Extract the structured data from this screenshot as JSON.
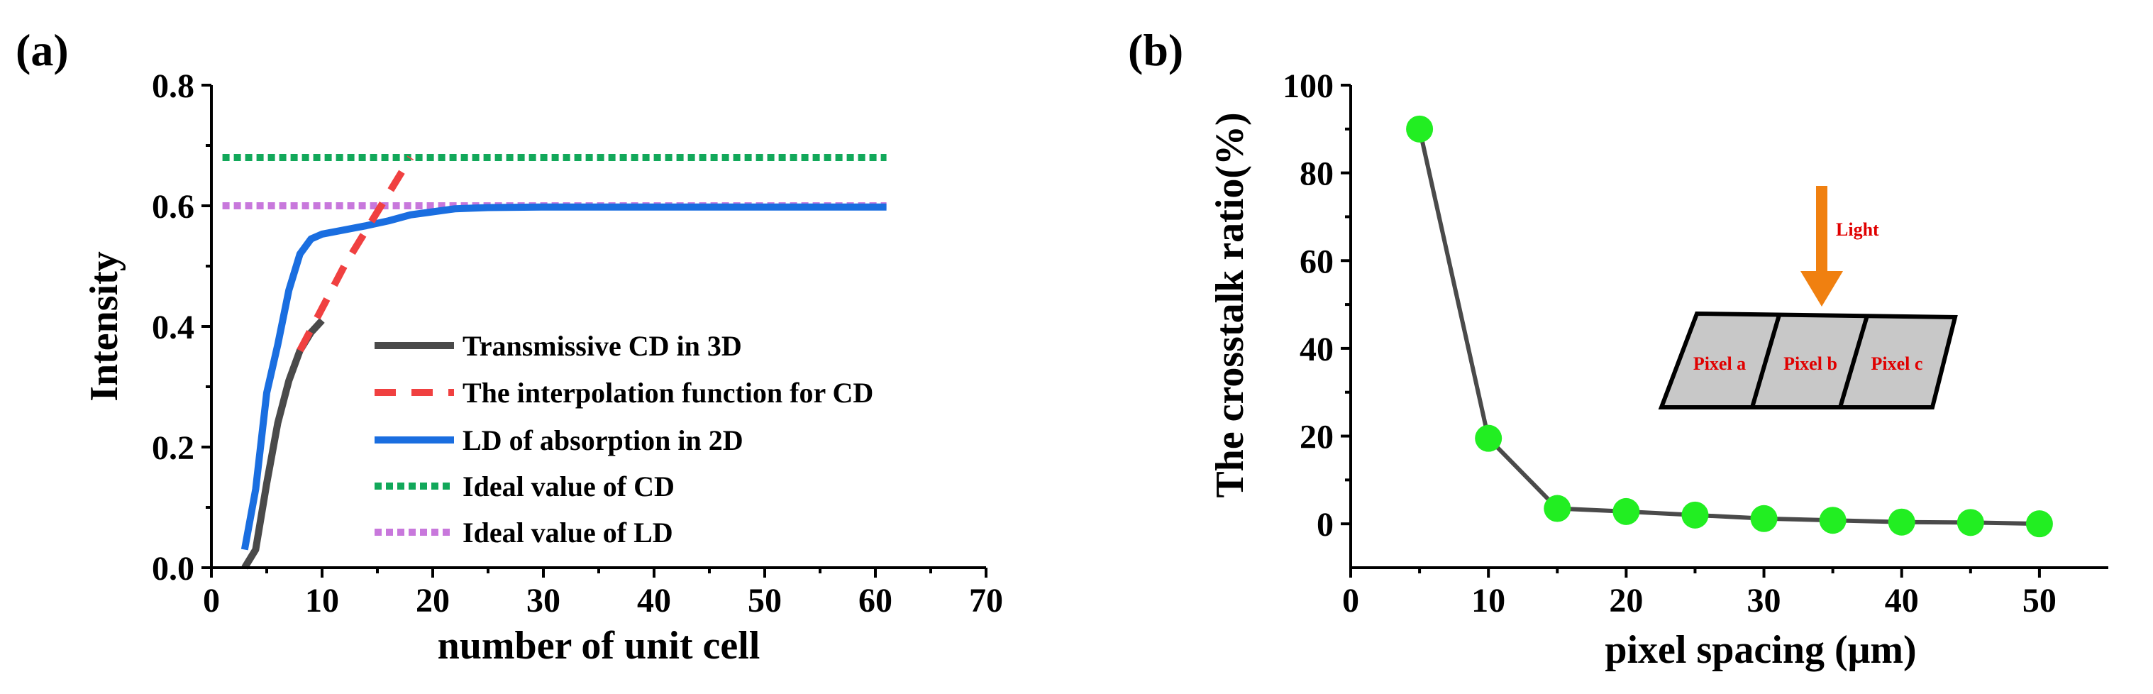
{
  "panels": {
    "a": {
      "label": "(a)"
    },
    "b": {
      "label": "(b)"
    }
  },
  "chart_data": [
    {
      "id": "a",
      "type": "line",
      "title": "",
      "xlabel": "number of unit cell",
      "ylabel": "Intensity",
      "xlim": [
        0,
        70
      ],
      "ylim": [
        0,
        0.8
      ],
      "xticks": [
        0,
        10,
        20,
        30,
        40,
        50,
        60,
        70
      ],
      "yticks": [
        0.0,
        0.2,
        0.4,
        0.6,
        0.8
      ],
      "xtick_labels": [
        "0",
        "10",
        "20",
        "30",
        "40",
        "50",
        "60",
        "70"
      ],
      "ytick_labels": [
        "0.0",
        "0.2",
        "0.4",
        "0.6",
        "0.8"
      ],
      "legend_position": "bottom-right",
      "series": [
        {
          "name": "Transmissive CD in 3D",
          "color": "#4a4a4a",
          "style": "solid",
          "x": [
            3,
            4,
            5,
            6,
            7,
            8,
            9,
            10
          ],
          "y": [
            0.0,
            0.03,
            0.14,
            0.24,
            0.31,
            0.36,
            0.39,
            0.41
          ]
        },
        {
          "name": "The interpolation function for CD",
          "color": "#f04040",
          "style": "dashed",
          "x": [
            8,
            10,
            12,
            14,
            16,
            18
          ],
          "y": [
            0.36,
            0.43,
            0.5,
            0.56,
            0.62,
            0.68
          ]
        },
        {
          "name": "LD of absorption in 2D",
          "color": "#1a6ee0",
          "style": "solid",
          "x": [
            3,
            4,
            5,
            6,
            7,
            8,
            9,
            10,
            12,
            14,
            16,
            18,
            20,
            22,
            25,
            30,
            40,
            50,
            61
          ],
          "y": [
            0.03,
            0.13,
            0.29,
            0.37,
            0.46,
            0.52,
            0.545,
            0.553,
            0.56,
            0.567,
            0.575,
            0.585,
            0.59,
            0.595,
            0.597,
            0.598,
            0.598,
            0.598,
            0.598
          ]
        },
        {
          "name": "Ideal value of CD",
          "color": "#12a85a",
          "style": "dotted",
          "x": [
            1,
            61
          ],
          "y": [
            0.68,
            0.68
          ]
        },
        {
          "name": "Ideal value of LD",
          "color": "#c878dc",
          "style": "dotted",
          "x": [
            1,
            61
          ],
          "y": [
            0.6,
            0.6
          ]
        }
      ]
    },
    {
      "id": "b",
      "type": "line",
      "title": "",
      "xlabel": "pixel spacing (μm)",
      "ylabel": "The crosstalk ratio(%)",
      "xlim": [
        0,
        55
      ],
      "ylim": [
        -10,
        100
      ],
      "xticks": [
        0,
        10,
        20,
        30,
        40,
        50
      ],
      "yticks": [
        0,
        20,
        40,
        60,
        80,
        100
      ],
      "xtick_labels": [
        "0",
        "10",
        "20",
        "30",
        "40",
        "50"
      ],
      "ytick_labels": [
        "0",
        "20",
        "40",
        "60",
        "80",
        "100"
      ],
      "series": [
        {
          "name": "crosstalk ratio",
          "color": "#4a4a4a",
          "marker_color": "#22ee22",
          "x": [
            5,
            10,
            15,
            20,
            25,
            30,
            35,
            40,
            45,
            50
          ],
          "y": [
            90,
            19.5,
            3.5,
            2.8,
            2.0,
            1.2,
            0.8,
            0.4,
            0.3,
            0.0
          ]
        }
      ],
      "inset": {
        "light_label": "Light",
        "arrow_color": "#f08010",
        "pixel_fill": "#c8c8c8",
        "pixel_labels": [
          "Pixel a",
          "Pixel b",
          "Pixel c"
        ]
      }
    }
  ]
}
